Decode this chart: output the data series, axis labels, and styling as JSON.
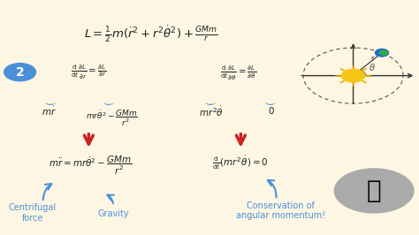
{
  "background_color": "#fdf6e3",
  "title_eq": "L = \\frac{1}{2}m(\\dot{r}^2 + r^2\\dot{\\theta}^2) + \\frac{GMm}{r}",
  "circle_number": "2",
  "circle_color": "#4a90d9",
  "eq_left_top": "\\frac{\\mathrm{d}}{\\mathrm{d}t}\\frac{\\partial L}{\\partial \\dot{r}} = \\frac{\\partial L}{\\partial r}",
  "eq_left_bot1": "m\\dot{r}",
  "eq_left_bot2": "mr\\dot{\\theta}^2 - \\frac{GMm}{r^2}",
  "eq_right_top": "\\frac{\\mathrm{d}}{\\mathrm{d}t}\\frac{\\partial L}{\\partial \\dot{\\theta}} = \\frac{\\partial L}{\\partial \\theta}",
  "eq_right_bot1": "mr^2\\dot{\\theta}",
  "eq_right_bot2": "0",
  "eq_final_left": "m\\ddot{r} = mr\\dot{\\theta}^2 - \\frac{GMm}{r^2}",
  "eq_final_right": "\\frac{\\mathrm{d}}{\\mathrm{d}t}(mr^2\\dot{\\theta}) = 0",
  "label_centrifugal": "Centrifugal\nforce",
  "label_gravity": "Gravity",
  "label_conservation": "Conservation of\nangular momentum!",
  "arrow_color_red": "#cc2222",
  "arrow_color_blue": "#4a90d9",
  "text_color_blue": "#4a90d9",
  "text_color_dark": "#222222",
  "brace_color": "#4a90d9"
}
